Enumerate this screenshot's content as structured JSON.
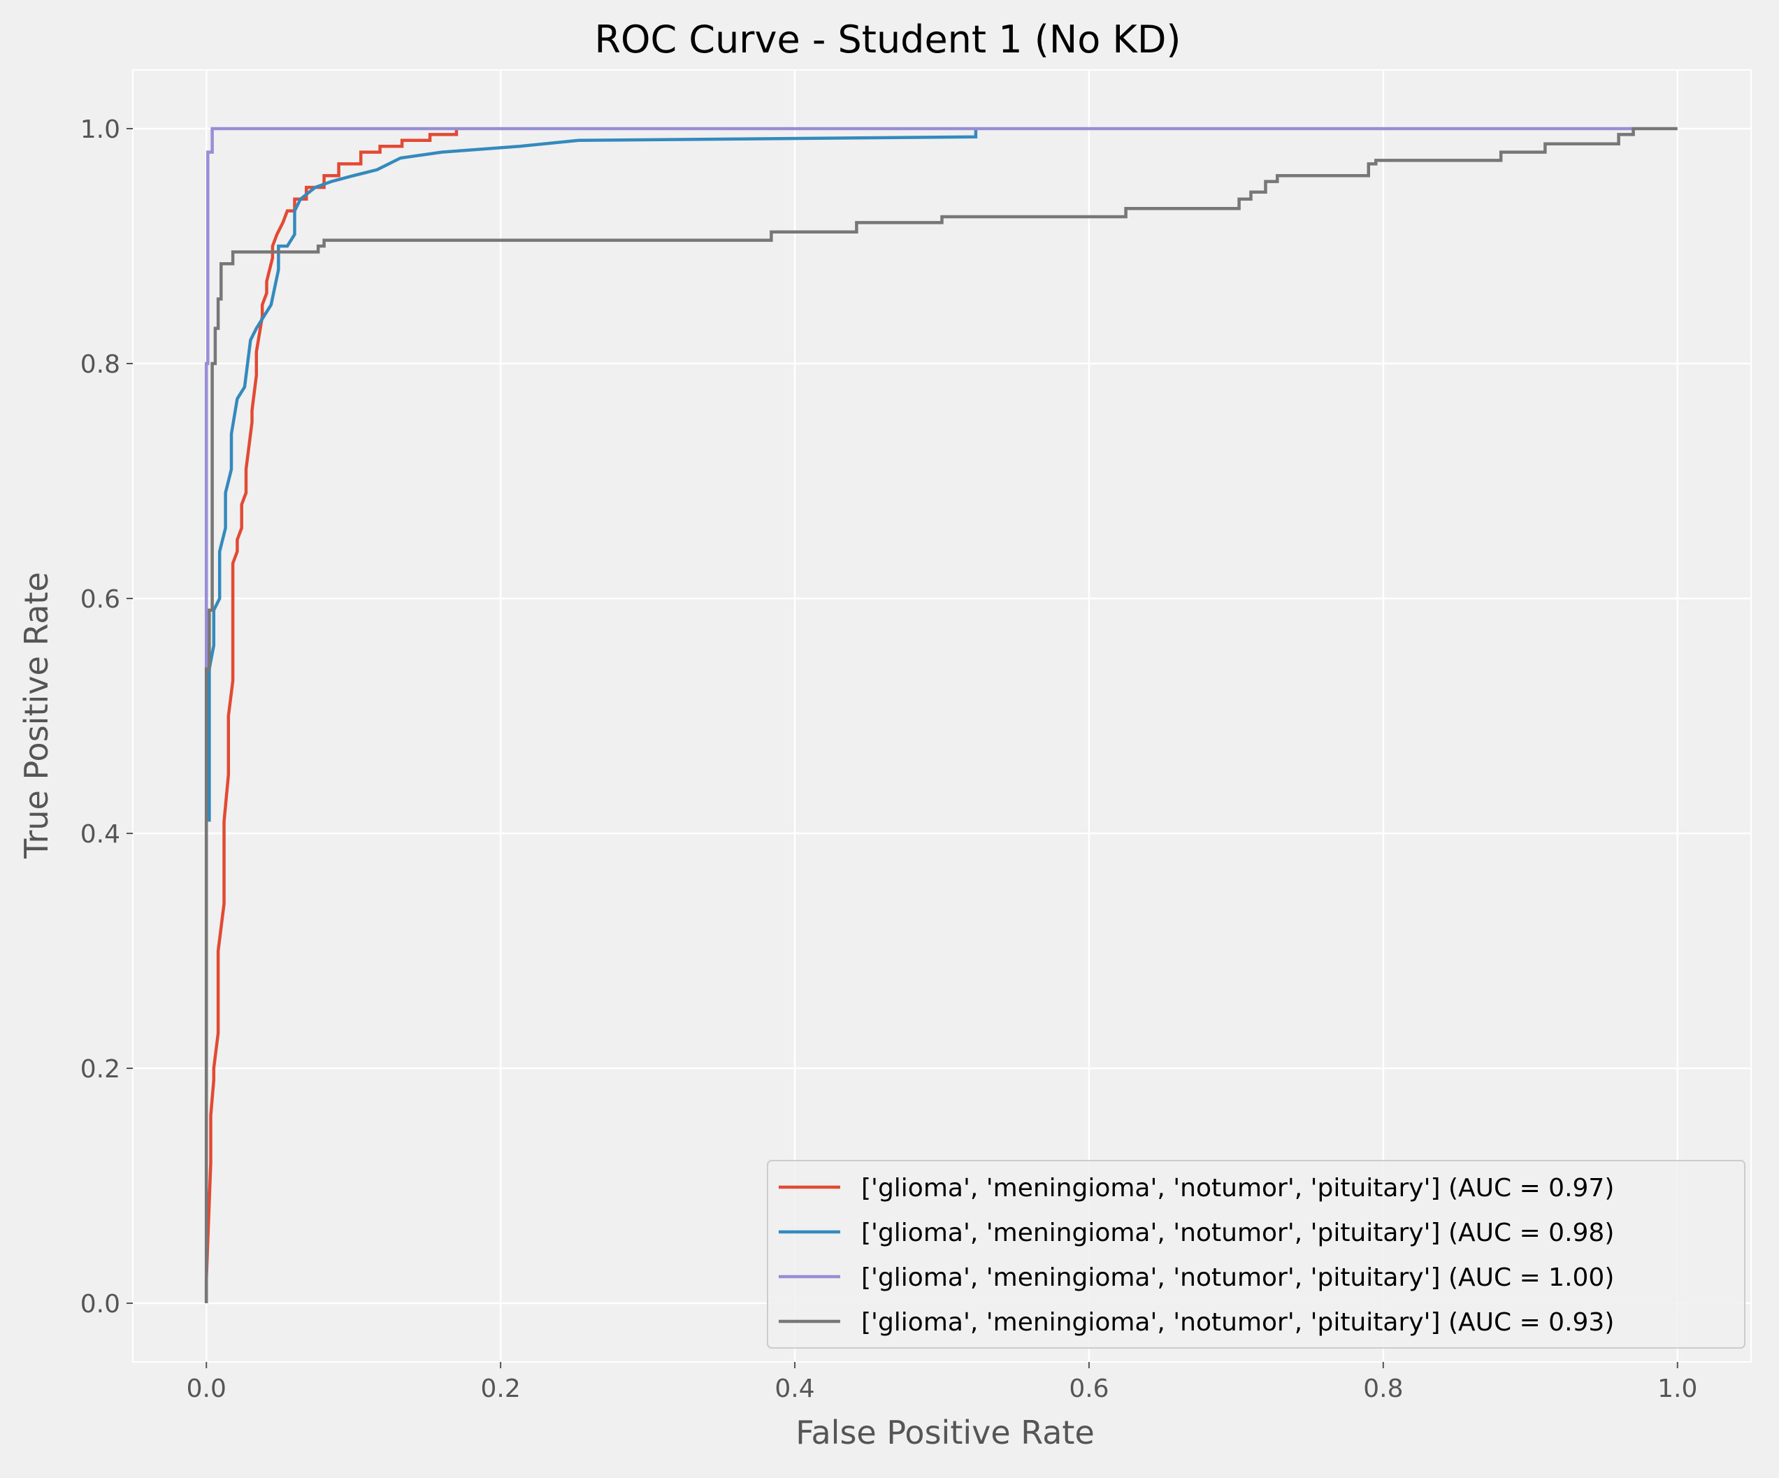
{
  "chart_data": {
    "type": "line",
    "title": "ROC Curve - Student 1 (No KD)",
    "xlabel": "False Positive Rate",
    "ylabel": "True Positive Rate",
    "xlim": [
      -0.05,
      1.05
    ],
    "ylim": [
      -0.05,
      1.05
    ],
    "xticks": [
      0.0,
      0.2,
      0.4,
      0.6,
      0.8,
      1.0
    ],
    "yticks": [
      0.0,
      0.2,
      0.4,
      0.6,
      0.8,
      1.0
    ],
    "xtick_labels": [
      "0.0",
      "0.2",
      "0.4",
      "0.6",
      "0.8",
      "1.0"
    ],
    "ytick_labels": [
      "0.0",
      "0.2",
      "0.4",
      "0.6",
      "0.8",
      "1.0"
    ],
    "grid": true,
    "legend_position": "lower-right",
    "series": [
      {
        "name": "['glioma', 'meningioma', 'notumor', 'pituitary'] (AUC = 0.97)",
        "color": "#E24A33",
        "x": [
          0.0,
          0.0,
          0.003,
          0.003,
          0.005,
          0.005,
          0.008,
          0.008,
          0.012,
          0.012,
          0.015,
          0.015,
          0.018,
          0.018,
          0.021,
          0.021,
          0.024,
          0.024,
          0.027,
          0.027,
          0.031,
          0.031,
          0.034,
          0.034,
          0.038,
          0.038,
          0.041,
          0.041,
          0.045,
          0.045,
          0.048,
          0.048,
          0.052,
          0.052,
          0.055,
          0.055,
          0.06,
          0.06,
          0.068,
          0.068,
          0.08,
          0.08,
          0.09,
          0.09,
          0.105,
          0.105,
          0.118,
          0.118,
          0.133,
          0.133,
          0.152,
          0.152,
          0.17,
          0.17
        ],
        "y": [
          0.0,
          0.02,
          0.12,
          0.16,
          0.19,
          0.2,
          0.23,
          0.3,
          0.34,
          0.41,
          0.45,
          0.5,
          0.53,
          0.63,
          0.64,
          0.65,
          0.66,
          0.68,
          0.69,
          0.71,
          0.75,
          0.76,
          0.79,
          0.81,
          0.84,
          0.85,
          0.86,
          0.87,
          0.89,
          0.9,
          0.91,
          0.91,
          0.92,
          0.92,
          0.93,
          0.93,
          0.93,
          0.94,
          0.94,
          0.95,
          0.95,
          0.96,
          0.96,
          0.97,
          0.97,
          0.98,
          0.98,
          0.985,
          0.985,
          0.99,
          0.99,
          0.995,
          0.995,
          1.0
        ]
      },
      {
        "name": "['glioma', 'meningioma', 'notumor', 'pituitary'] (AUC = 0.98)",
        "color": "#348ABD",
        "x": [
          0.002,
          0.002,
          0.005,
          0.005,
          0.009,
          0.009,
          0.013,
          0.013,
          0.017,
          0.017,
          0.021,
          0.021,
          0.026,
          0.026,
          0.03,
          0.03,
          0.034,
          0.034,
          0.039,
          0.039,
          0.044,
          0.044,
          0.049,
          0.049,
          0.055,
          0.055,
          0.06,
          0.06,
          0.064,
          0.064,
          0.069,
          0.069,
          0.074,
          0.074,
          0.085,
          0.085,
          0.1,
          0.1,
          0.116,
          0.116,
          0.132,
          0.132,
          0.16,
          0.16,
          0.213,
          0.213,
          0.253,
          0.253,
          0.523,
          0.523
        ],
        "y": [
          0.41,
          0.54,
          0.56,
          0.59,
          0.6,
          0.64,
          0.66,
          0.69,
          0.71,
          0.74,
          0.77,
          0.77,
          0.78,
          0.78,
          0.82,
          0.82,
          0.83,
          0.83,
          0.84,
          0.84,
          0.85,
          0.85,
          0.88,
          0.9,
          0.9,
          0.9,
          0.91,
          0.93,
          0.94,
          0.94,
          0.945,
          0.945,
          0.95,
          0.95,
          0.955,
          0.955,
          0.96,
          0.96,
          0.965,
          0.965,
          0.975,
          0.975,
          0.98,
          0.98,
          0.985,
          0.985,
          0.99,
          0.99,
          0.993,
          1.0
        ]
      },
      {
        "name": "['glioma', 'meningioma', 'notumor', 'pituitary'] (AUC = 1.00)",
        "color": "#988ED5",
        "x": [
          0.0,
          0.0,
          0.001,
          0.001,
          0.004,
          0.004,
          0.97
        ],
        "y": [
          0.0,
          0.8,
          0.8,
          0.98,
          0.98,
          1.0,
          1.0
        ]
      },
      {
        "name": "['glioma', 'meningioma', 'notumor', 'pituitary'] (AUC = 0.93)",
        "color": "#777777",
        "x": [
          0.0,
          0.0,
          0.002,
          0.002,
          0.004,
          0.004,
          0.006,
          0.006,
          0.008,
          0.008,
          0.01,
          0.01,
          0.012,
          0.012,
          0.018,
          0.018,
          0.076,
          0.076,
          0.08,
          0.08,
          0.384,
          0.384,
          0.442,
          0.442,
          0.5,
          0.5,
          0.625,
          0.625,
          0.702,
          0.702,
          0.71,
          0.71,
          0.72,
          0.72,
          0.728,
          0.728,
          0.79,
          0.79,
          0.795,
          0.795,
          0.88,
          0.88,
          0.91,
          0.91,
          0.96,
          0.96,
          0.97,
          0.97,
          1.0
        ],
        "y": [
          0.0,
          0.54,
          0.54,
          0.59,
          0.59,
          0.8,
          0.8,
          0.83,
          0.83,
          0.855,
          0.855,
          0.885,
          0.885,
          0.885,
          0.885,
          0.895,
          0.895,
          0.9,
          0.9,
          0.905,
          0.905,
          0.912,
          0.912,
          0.92,
          0.92,
          0.925,
          0.925,
          0.932,
          0.932,
          0.94,
          0.94,
          0.946,
          0.946,
          0.955,
          0.955,
          0.96,
          0.96,
          0.97,
          0.97,
          0.973,
          0.973,
          0.98,
          0.98,
          0.987,
          0.987,
          0.995,
          0.995,
          1.0,
          1.0
        ]
      }
    ]
  }
}
